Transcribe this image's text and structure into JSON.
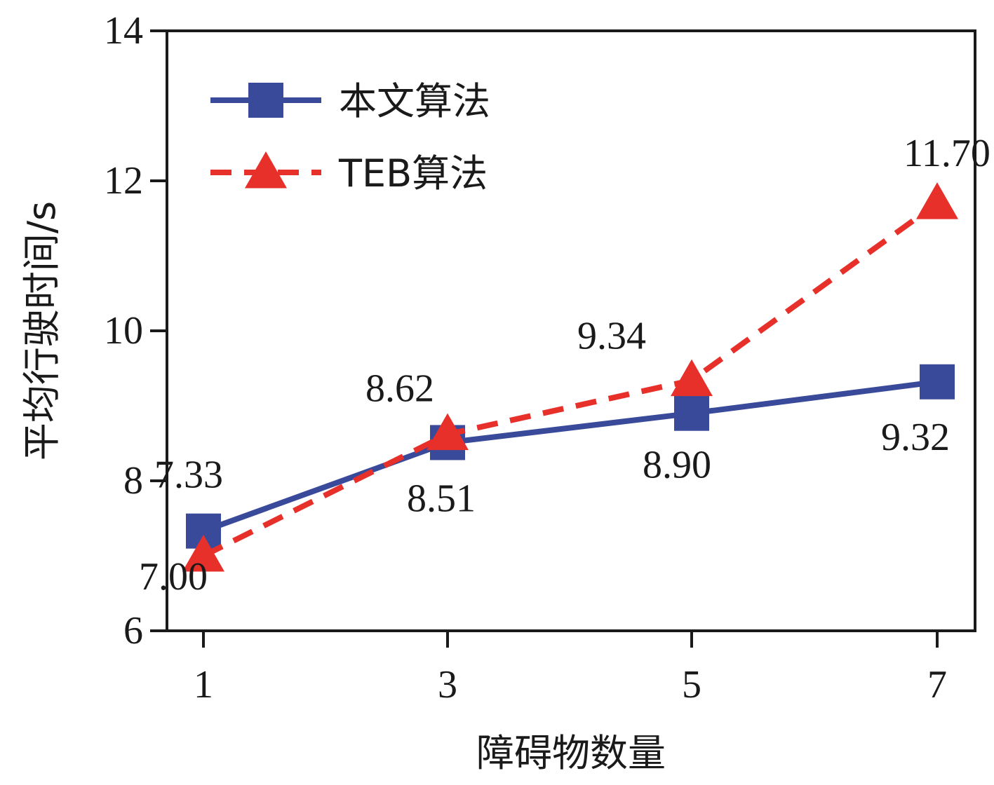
{
  "chart_data": {
    "type": "line",
    "xlabel": "障碍物数量",
    "ylabel": "平均行驶时间/s",
    "x": [
      1,
      3,
      5,
      7
    ],
    "x_ticks": [
      "1",
      "3",
      "5",
      "7"
    ],
    "ylim": [
      6,
      14
    ],
    "y_ticks": [
      "6",
      "8",
      "10",
      "12",
      "14"
    ],
    "grid": false,
    "legend_position": "top-left",
    "series": [
      {
        "name": "本文算法",
        "values": [
          7.33,
          8.51,
          8.9,
          9.32
        ],
        "labels": [
          "7.33",
          "8.51",
          "8.90",
          "9.32"
        ],
        "color": "#3a4a9a",
        "line_style": "solid",
        "marker": "square"
      },
      {
        "name": "TEB算法",
        "values": [
          7.0,
          8.62,
          9.34,
          11.7
        ],
        "labels": [
          "7.00",
          "8.62",
          "9.34",
          "11.70"
        ],
        "color": "#e8302a",
        "line_style": "dashed",
        "marker": "triangle"
      }
    ]
  }
}
